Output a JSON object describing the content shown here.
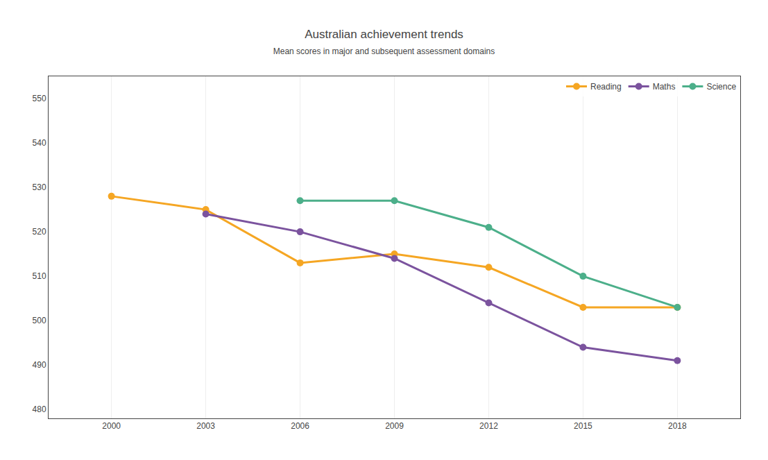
{
  "chart_data": {
    "type": "line",
    "title": "Australian achievement trends",
    "subtitle": "Mean scores in major and subsequent assessment domains",
    "x": [
      2000,
      2003,
      2006,
      2009,
      2012,
      2015,
      2018
    ],
    "series": [
      {
        "name": "Reading",
        "color": "#F5A623",
        "values": [
          528,
          525,
          513,
          515,
          512,
          503,
          503
        ]
      },
      {
        "name": "Maths",
        "color": "#7B539E",
        "values": [
          null,
          524,
          520,
          514,
          504,
          494,
          491
        ]
      },
      {
        "name": "Science",
        "color": "#4CAF8A",
        "values": [
          null,
          null,
          527,
          527,
          521,
          510,
          503
        ]
      }
    ],
    "xlim": [
      1998.0,
      2020.0
    ],
    "xticks": [
      2000,
      2003,
      2006,
      2009,
      2012,
      2015,
      2018
    ],
    "ylim": [
      478,
      555
    ],
    "yticks": [
      480,
      490,
      500,
      510,
      520,
      530,
      540,
      550
    ],
    "grid": "x",
    "legend": "upper right",
    "marker": "circle"
  }
}
